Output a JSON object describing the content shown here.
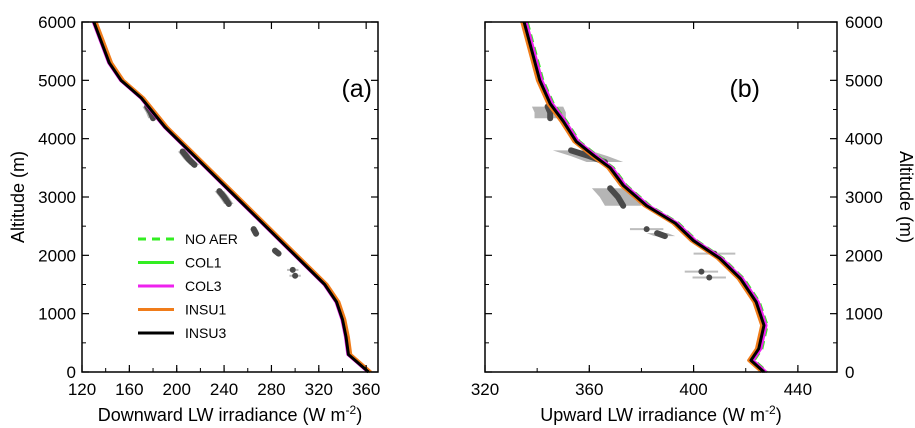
{
  "chart_data": [
    {
      "type": "line",
      "panel_label": "(a)",
      "xlabel": "Downward LW irradiance (W m",
      "xlabel_sup": "-2",
      "xlabel_tail": ")",
      "ylabel": "Altitude (m)",
      "xlim": [
        120,
        370
      ],
      "ylim": [
        0,
        6000
      ],
      "xticks": [
        "120",
        "160",
        "200",
        "240",
        "280",
        "320",
        "360"
      ],
      "yticks": [
        "0",
        "1000",
        "2000",
        "3000",
        "4000",
        "5000",
        "6000"
      ],
      "legend": {
        "placement": "lower-left",
        "entries": [
          {
            "name": "NO AER",
            "color": "#33ee22",
            "dash": true
          },
          {
            "name": "COL1",
            "color": "#33ee22",
            "dash": false
          },
          {
            "name": "COL3",
            "color": "#ee22ee",
            "dash": false
          },
          {
            "name": "INSU1",
            "color": "#f07c1a",
            "dash": false
          },
          {
            "name": "INSU3",
            "color": "#000000",
            "dash": false
          }
        ]
      },
      "series": [
        {
          "name": "NO AER",
          "color": "#33ee22",
          "dash": true,
          "offset": 1.5,
          "points": [
            [
              130,
              6000
            ],
            [
              143,
              5300
            ],
            [
              153,
              5000
            ],
            [
              170,
              4700
            ],
            [
              190,
              4200
            ],
            [
              210,
              3800
            ],
            [
              230,
              3400
            ],
            [
              250,
              3000
            ],
            [
              270,
              2600
            ],
            [
              290,
              2200
            ],
            [
              310,
              1800
            ],
            [
              325,
              1500
            ],
            [
              335,
              1200
            ],
            [
              340,
              900
            ],
            [
              343,
              600
            ],
            [
              345,
              300
            ],
            [
              362,
              0
            ]
          ]
        },
        {
          "name": "COL1",
          "color": "#33ee22",
          "dash": false,
          "offset": 0.5,
          "points": [
            [
              130,
              6000
            ],
            [
              143,
              5300
            ],
            [
              153,
              5000
            ],
            [
              170,
              4700
            ],
            [
              190,
              4200
            ],
            [
              210,
              3800
            ],
            [
              230,
              3400
            ],
            [
              250,
              3000
            ],
            [
              270,
              2600
            ],
            [
              290,
              2200
            ],
            [
              310,
              1800
            ],
            [
              325,
              1500
            ],
            [
              335,
              1200
            ],
            [
              340,
              900
            ],
            [
              343,
              600
            ],
            [
              345,
              300
            ],
            [
              362,
              0
            ]
          ]
        },
        {
          "name": "COL3",
          "color": "#ee22ee",
          "dash": false,
          "offset": -0.5,
          "points": [
            [
              130,
              6000
            ],
            [
              143,
              5300
            ],
            [
              153,
              5000
            ],
            [
              170,
              4700
            ],
            [
              190,
              4200
            ],
            [
              210,
              3800
            ],
            [
              230,
              3400
            ],
            [
              250,
              3000
            ],
            [
              270,
              2600
            ],
            [
              290,
              2200
            ],
            [
              310,
              1800
            ],
            [
              325,
              1500
            ],
            [
              335,
              1200
            ],
            [
              340,
              900
            ],
            [
              343,
              600
            ],
            [
              345,
              300
            ],
            [
              362,
              0
            ]
          ]
        },
        {
          "name": "INSU1",
          "color": "#f07c1a",
          "dash": false,
          "offset": 2.0,
          "points": [
            [
              130,
              6000
            ],
            [
              143,
              5300
            ],
            [
              153,
              5000
            ],
            [
              170,
              4700
            ],
            [
              190,
              4200
            ],
            [
              210,
              3800
            ],
            [
              230,
              3400
            ],
            [
              250,
              3000
            ],
            [
              270,
              2600
            ],
            [
              290,
              2200
            ],
            [
              310,
              1800
            ],
            [
              325,
              1500
            ],
            [
              335,
              1200
            ],
            [
              340,
              900
            ],
            [
              343,
              600
            ],
            [
              345,
              300
            ],
            [
              362,
              0
            ]
          ]
        },
        {
          "name": "INSU3",
          "color": "#000000",
          "dash": false,
          "offset": 0,
          "points": [
            [
              130,
              6000
            ],
            [
              143,
              5300
            ],
            [
              153,
              5000
            ],
            [
              170,
              4700
            ],
            [
              190,
              4200
            ],
            [
              210,
              3800
            ],
            [
              230,
              3400
            ],
            [
              250,
              3000
            ],
            [
              270,
              2600
            ],
            [
              290,
              2200
            ],
            [
              310,
              1800
            ],
            [
              325,
              1500
            ],
            [
              335,
              1200
            ],
            [
              340,
              900
            ],
            [
              343,
              600
            ],
            [
              345,
              300
            ],
            [
              362,
              0
            ]
          ]
        }
      ],
      "observations": [
        {
          "points": [
            [
              175,
              4550
            ],
            [
              178,
              4450
            ],
            [
              180,
              4350
            ]
          ],
          "spread": 4
        },
        {
          "points": [
            [
              205,
              3780
            ],
            [
              210,
              3650
            ],
            [
              215,
              3550
            ]
          ],
          "spread": 4
        },
        {
          "points": [
            [
              236,
              3100
            ],
            [
              240,
              3000
            ],
            [
              244,
              2880
            ]
          ],
          "spread": 4
        },
        {
          "points": [
            [
              265,
              2450
            ],
            [
              267,
              2370
            ]
          ],
          "spread": 3
        },
        {
          "points": [
            [
              283,
              2080
            ],
            [
              286,
              2030
            ]
          ],
          "spread": 3
        },
        {
          "points": [
            [
              298,
              1750
            ]
          ],
          "spread": 3
        },
        {
          "points": [
            [
              300,
              1650
            ]
          ],
          "spread": 3
        }
      ]
    },
    {
      "type": "line",
      "panel_label": "(b)",
      "xlabel": "Upward LW irradiance (W m",
      "xlabel_sup": "-2",
      "xlabel_tail": ")",
      "ylabel": "Altitude (m)",
      "xlim": [
        320,
        455
      ],
      "ylim": [
        0,
        6000
      ],
      "xticks": [
        "320",
        "360",
        "400",
        "440"
      ],
      "yticks": [
        "0",
        "1000",
        "2000",
        "3000",
        "4000",
        "5000",
        "6000"
      ],
      "series": [
        {
          "name": "NO AER",
          "color": "#33ee22",
          "dash": true,
          "offset": 1.2,
          "points": [
            [
              335,
              6000
            ],
            [
              338,
              5500
            ],
            [
              341,
              5000
            ],
            [
              345,
              4600
            ],
            [
              350,
              4300
            ],
            [
              355,
              3950
            ],
            [
              362,
              3700
            ],
            [
              368,
              3500
            ],
            [
              373,
              3200
            ],
            [
              382,
              2850
            ],
            [
              393,
              2550
            ],
            [
              400,
              2250
            ],
            [
              410,
              1950
            ],
            [
              418,
              1600
            ],
            [
              424,
              1200
            ],
            [
              427,
              800
            ],
            [
              425,
              400
            ],
            [
              422,
              200
            ],
            [
              427,
              0
            ]
          ]
        },
        {
          "name": "COL1",
          "color": "#33ee22",
          "dash": false,
          "offset": 0.5,
          "points": [
            [
              335,
              6000
            ],
            [
              338,
              5500
            ],
            [
              341,
              5000
            ],
            [
              345,
              4600
            ],
            [
              350,
              4300
            ],
            [
              355,
              3950
            ],
            [
              362,
              3700
            ],
            [
              368,
              3500
            ],
            [
              373,
              3200
            ],
            [
              382,
              2850
            ],
            [
              393,
              2550
            ],
            [
              400,
              2250
            ],
            [
              410,
              1950
            ],
            [
              418,
              1600
            ],
            [
              424,
              1200
            ],
            [
              427,
              800
            ],
            [
              425,
              400
            ],
            [
              422,
              200
            ],
            [
              427,
              0
            ]
          ]
        },
        {
          "name": "COL3",
          "color": "#ee22ee",
          "dash": false,
          "offset": 0.8,
          "points": [
            [
              335,
              6000
            ],
            [
              338,
              5500
            ],
            [
              341,
              5000
            ],
            [
              345,
              4600
            ],
            [
              350,
              4300
            ],
            [
              355,
              3950
            ],
            [
              362,
              3700
            ],
            [
              368,
              3500
            ],
            [
              373,
              3200
            ],
            [
              382,
              2850
            ],
            [
              393,
              2550
            ],
            [
              400,
              2250
            ],
            [
              410,
              1950
            ],
            [
              418,
              1600
            ],
            [
              424,
              1200
            ],
            [
              427,
              800
            ],
            [
              425,
              400
            ],
            [
              422,
              200
            ],
            [
              427,
              0
            ]
          ]
        },
        {
          "name": "INSU1",
          "color": "#f07c1a",
          "dash": false,
          "offset": -0.9,
          "points": [
            [
              335,
              6000
            ],
            [
              338,
              5500
            ],
            [
              341,
              5000
            ],
            [
              345,
              4600
            ],
            [
              350,
              4300
            ],
            [
              355,
              3950
            ],
            [
              362,
              3700
            ],
            [
              368,
              3500
            ],
            [
              373,
              3200
            ],
            [
              382,
              2850
            ],
            [
              393,
              2550
            ],
            [
              400,
              2250
            ],
            [
              410,
              1950
            ],
            [
              418,
              1600
            ],
            [
              424,
              1200
            ],
            [
              427,
              800
            ],
            [
              425,
              400
            ],
            [
              422,
              200
            ],
            [
              427,
              0
            ]
          ]
        },
        {
          "name": "INSU3",
          "color": "#000000",
          "dash": false,
          "offset": 0,
          "points": [
            [
              335,
              6000
            ],
            [
              338,
              5500
            ],
            [
              341,
              5000
            ],
            [
              345,
              4600
            ],
            [
              350,
              4300
            ],
            [
              355,
              3950
            ],
            [
              362,
              3700
            ],
            [
              368,
              3500
            ],
            [
              373,
              3200
            ],
            [
              382,
              2850
            ],
            [
              393,
              2550
            ],
            [
              400,
              2250
            ],
            [
              410,
              1950
            ],
            [
              418,
              1600
            ],
            [
              424,
              1200
            ],
            [
              427,
              800
            ],
            [
              425,
              400
            ],
            [
              422,
              200
            ],
            [
              427,
              0
            ]
          ]
        }
      ],
      "observations": [
        {
          "points": [
            [
              344,
              4550
            ],
            [
              345,
              4450
            ],
            [
              345,
              4350
            ]
          ],
          "spread": 6
        },
        {
          "points": [
            [
              353,
              3800
            ],
            [
              360,
              3700
            ],
            [
              366,
              3600
            ]
          ],
          "spread": 7
        },
        {
          "points": [
            [
              368,
              3150
            ],
            [
              371,
              3000
            ],
            [
              373,
              2850
            ]
          ],
          "spread": 7
        },
        {
          "points": [
            [
              382,
              2450
            ]
          ],
          "spread": 4
        },
        {
          "points": [
            [
              386,
              2380
            ],
            [
              389,
              2330
            ]
          ],
          "spread": 4
        },
        {
          "points": [
            [
              408,
              2030
            ]
          ],
          "spread": 5
        },
        {
          "points": [
            [
              403,
              1720
            ]
          ],
          "spread": 4
        },
        {
          "points": [
            [
              406,
              1620
            ]
          ],
          "spread": 4
        }
      ]
    }
  ]
}
